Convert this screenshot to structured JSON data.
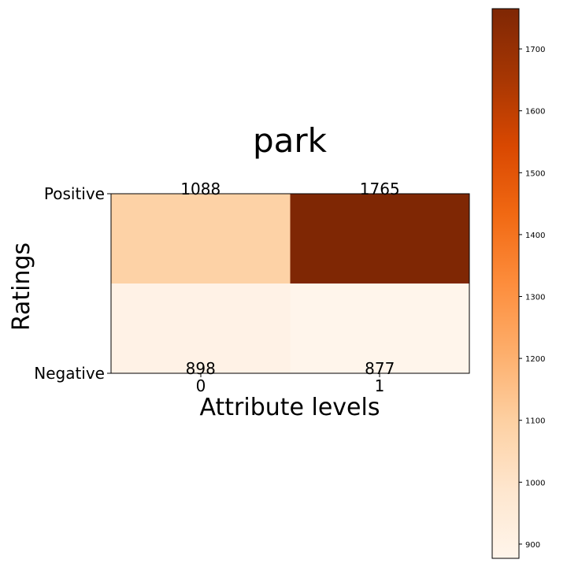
{
  "chart_data": {
    "type": "heatmap",
    "title": "park",
    "xlabel": "Attribute levels",
    "ylabel": "Ratings",
    "x_categories": [
      "0",
      "1"
    ],
    "y_categories": [
      "Positive",
      "Negative"
    ],
    "values": [
      [
        1088,
        1765
      ],
      [
        898,
        877
      ]
    ],
    "colormap": "Oranges",
    "color_range": [
      877,
      1765
    ],
    "colorbar_ticks": [
      900,
      1000,
      1100,
      1200,
      1300,
      1400,
      1500,
      1600,
      1700
    ],
    "grid": false,
    "colors": {
      "low": "#fff5eb",
      "high": "#7f2704"
    }
  }
}
